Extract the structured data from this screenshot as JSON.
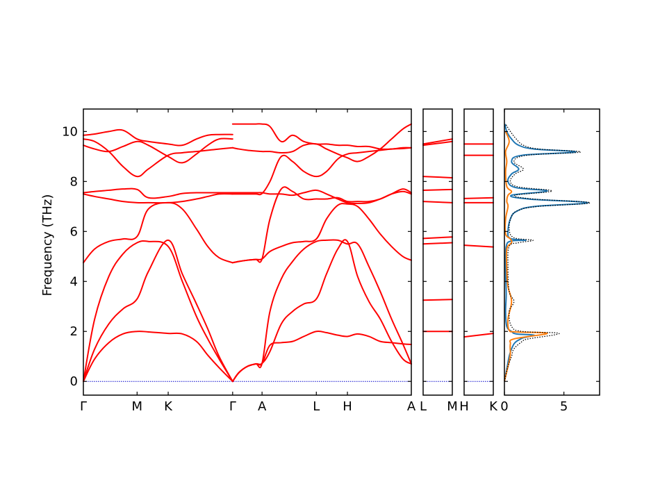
{
  "chart_data": {
    "type": "line",
    "ylabel": "Frequency (THz)",
    "ylim": [
      -0.55,
      10.9
    ],
    "yticks": [
      0,
      2,
      4,
      6,
      8,
      10
    ],
    "band_panels": [
      {
        "name": "main",
        "xlim": [
          0,
          5.8
        ],
        "labels": [
          {
            "x": 0,
            "text": "Γ"
          },
          {
            "x": 0.95,
            "text": "M"
          },
          {
            "x": 1.5,
            "text": "K"
          },
          {
            "x": 2.64,
            "text": "Γ"
          },
          {
            "x": 3.16,
            "text": "A"
          },
          {
            "x": 4.12,
            "text": "L"
          },
          {
            "x": 4.67,
            "text": "H"
          },
          {
            "x": 5.8,
            "text": "A"
          }
        ],
        "ticks": [
          0.95,
          1.5,
          2.64,
          3.16,
          4.12,
          4.67
        ],
        "segments": [
          {
            "x": [
              0,
              0.2,
              0.45,
              0.7,
              0.95,
              1.15,
              1.5,
              1.75,
              2.0,
              2.2,
              2.4,
              2.64
            ],
            "bands": [
              [
                0,
                0.9,
                1.55,
                1.9,
                2.0,
                1.98,
                1.92,
                1.9,
                1.6,
                1.05,
                0.55,
                0
              ],
              [
                0,
                1.3,
                2.3,
                2.9,
                3.3,
                4.4,
                5.65,
                4.3,
                3.1,
                2.1,
                1.0,
                0
              ],
              [
                0,
                2.5,
                4.2,
                5.1,
                5.55,
                5.6,
                5.4,
                4.0,
                2.6,
                1.7,
                0.9,
                0
              ],
              [
                4.75,
                5.3,
                5.6,
                5.7,
                5.8,
                6.9,
                7.15,
                6.9,
                6.1,
                5.4,
                4.95,
                4.75
              ],
              [
                7.55,
                7.6,
                7.65,
                7.7,
                7.68,
                7.35,
                7.4,
                7.52,
                7.55,
                7.55,
                7.55,
                7.55
              ],
              [
                7.5,
                7.4,
                7.3,
                7.2,
                7.15,
                7.15,
                7.15,
                7.2,
                7.3,
                7.4,
                7.5,
                7.5
              ],
              [
                9.7,
                9.6,
                9.2,
                8.6,
                8.2,
                8.5,
                9.05,
                9.15,
                9.2,
                9.25,
                9.3,
                9.35
              ],
              [
                9.45,
                9.3,
                9.2,
                9.4,
                9.6,
                9.45,
                9.0,
                8.75,
                9.1,
                9.45,
                9.7,
                9.7
              ],
              [
                9.85,
                9.9,
                10.0,
                10.05,
                9.7,
                9.6,
                9.5,
                9.45,
                9.7,
                9.85,
                9.88,
                9.88
              ]
            ]
          },
          {
            "x": [
              2.64,
              2.75,
              2.9,
              3.05,
              3.16,
              3.3,
              3.5,
              3.7,
              3.9,
              4.12,
              4.3,
              4.5,
              4.67,
              4.85,
              5.05,
              5.25,
              5.45,
              5.65,
              5.8
            ],
            "bands": [
              [
                0,
                0.35,
                0.6,
                0.7,
                0.72,
                1.45,
                1.55,
                1.6,
                1.8,
                2.0,
                1.95,
                1.85,
                1.8,
                1.9,
                1.8,
                1.6,
                1.55,
                1.5,
                1.48
              ],
              [
                0,
                0.35,
                0.6,
                0.7,
                0.72,
                1.2,
                2.3,
                2.8,
                3.1,
                3.3,
                4.3,
                5.3,
                5.6,
                4.2,
                3.2,
                2.5,
                1.6,
                0.9,
                0.7
              ],
              [
                0,
                0.35,
                0.6,
                0.7,
                0.72,
                2.8,
                4.1,
                4.8,
                5.3,
                5.6,
                5.65,
                5.65,
                5.5,
                5.5,
                4.6,
                3.6,
                2.5,
                1.5,
                0.7
              ],
              [
                4.75,
                4.8,
                4.85,
                4.88,
                4.9,
                5.2,
                5.4,
                5.55,
                5.6,
                5.7,
                6.5,
                7.05,
                7.1,
                7.0,
                6.5,
                5.9,
                5.4,
                5.0,
                4.85
              ],
              [
                4.75,
                4.8,
                4.85,
                4.88,
                4.9,
                6.5,
                7.7,
                7.6,
                7.3,
                7.3,
                7.3,
                7.35,
                7.2,
                7.2,
                7.2,
                7.3,
                7.5,
                7.6,
                7.5
              ],
              [
                7.55,
                7.55,
                7.55,
                7.55,
                7.55,
                7.5,
                7.5,
                7.45,
                7.55,
                7.65,
                7.5,
                7.3,
                7.15,
                7.12,
                7.15,
                7.3,
                7.5,
                7.7,
                7.55
              ],
              [
                7.5,
                7.5,
                7.5,
                7.5,
                7.52,
                8.0,
                9.0,
                8.8,
                8.4,
                8.2,
                8.4,
                8.9,
                9.1,
                9.15,
                9.2,
                9.25,
                9.3,
                9.32,
                9.35
              ],
              [
                9.35,
                9.3,
                9.25,
                9.22,
                9.2,
                9.2,
                9.15,
                9.2,
                9.45,
                9.5,
                9.3,
                9.1,
                8.95,
                8.8,
                9.0,
                9.3,
                9.7,
                10.1,
                10.3
              ],
              [
                10.3,
                10.3,
                10.3,
                10.3,
                10.3,
                10.2,
                9.6,
                9.85,
                9.6,
                9.5,
                9.5,
                9.45,
                9.45,
                9.4,
                9.4,
                9.3,
                9.3,
                9.35,
                9.35
              ]
            ]
          }
        ]
      },
      {
        "name": "L-M",
        "xlim": [
          0,
          1
        ],
        "labels": [
          {
            "x": 0,
            "text": "L"
          },
          {
            "x": 1,
            "text": "M"
          }
        ],
        "segments": [
          {
            "x": [
              0,
              1
            ],
            "bands": [
              [
                2.0,
                2.0
              ],
              [
                3.25,
                3.28
              ],
              [
                5.5,
                5.55
              ],
              [
                5.72,
                5.78
              ],
              [
                7.2,
                7.15
              ],
              [
                7.65,
                7.68
              ],
              [
                8.2,
                8.15
              ],
              [
                9.45,
                9.6
              ],
              [
                9.5,
                9.7
              ]
            ]
          }
        ]
      },
      {
        "name": "H-K",
        "xlim": [
          0,
          1
        ],
        "labels": [
          {
            "x": 0,
            "text": "H"
          },
          {
            "x": 1,
            "text": "K"
          }
        ],
        "segments": [
          {
            "x": [
              0,
              1
            ],
            "bands": [
              [
                1.78,
                1.92
              ],
              [
                5.45,
                5.38
              ],
              [
                7.15,
                7.15
              ],
              [
                7.32,
                7.35
              ],
              [
                9.05,
                9.05
              ],
              [
                9.5,
                9.5
              ]
            ]
          }
        ]
      }
    ],
    "dos_panel": {
      "xlim": [
        0,
        8
      ],
      "xticks": [
        0,
        5
      ],
      "series": [
        {
          "name": "",
          "color": "#1f77b4",
          "style": "solid",
          "points": [
            [
              0,
              0
            ],
            [
              0.2,
              0.5
            ],
            [
              0.4,
              1.0
            ],
            [
              0.6,
              1.3
            ],
            [
              0.8,
              1.5
            ],
            [
              1.0,
              1.6
            ],
            [
              1.3,
              1.68
            ],
            [
              1.6,
              1.75
            ],
            [
              2.5,
              1.85
            ],
            [
              1.0,
              1.9
            ],
            [
              0.6,
              2.0
            ],
            [
              0.2,
              2.2
            ],
            [
              0.1,
              2.8
            ],
            [
              0.15,
              3.5
            ],
            [
              0.1,
              4.5
            ],
            [
              0.15,
              5.4
            ],
            [
              0.6,
              5.62
            ],
            [
              1.8,
              5.65
            ],
            [
              0.5,
              5.72
            ],
            [
              0.3,
              6.0
            ],
            [
              0.5,
              6.5
            ],
            [
              1.0,
              6.8
            ],
            [
              2.5,
              7.0
            ],
            [
              7.0,
              7.15
            ],
            [
              2.0,
              7.3
            ],
            [
              0.6,
              7.45
            ],
            [
              3.6,
              7.62
            ],
            [
              1.0,
              7.75
            ],
            [
              0.3,
              8.0
            ],
            [
              0.6,
              8.3
            ],
            [
              1.2,
              8.5
            ],
            [
              0.6,
              8.8
            ],
            [
              1.5,
              9.05
            ],
            [
              6.0,
              9.18
            ],
            [
              2.5,
              9.3
            ],
            [
              1.2,
              9.45
            ],
            [
              0.6,
              9.7
            ],
            [
              0.2,
              10.0
            ],
            [
              0.05,
              10.3
            ]
          ]
        },
        {
          "name": "",
          "color": "#ff7f0e",
          "style": "solid",
          "points": [
            [
              0,
              0
            ],
            [
              0.2,
              0.4
            ],
            [
              0.4,
              0.8
            ],
            [
              0.5,
              1.1
            ],
            [
              0.5,
              1.5
            ],
            [
              0.8,
              1.7
            ],
            [
              3.6,
              1.92
            ],
            [
              1.0,
              1.98
            ],
            [
              0.4,
              2.05
            ],
            [
              0.3,
              2.5
            ],
            [
              0.6,
              3.2
            ],
            [
              0.3,
              3.8
            ],
            [
              0.2,
              4.5
            ],
            [
              0.2,
              5.3
            ],
            [
              0.6,
              5.55
            ],
            [
              0.5,
              5.7
            ],
            [
              0.1,
              5.9
            ],
            [
              0.1,
              6.5
            ],
            [
              0.3,
              7.0
            ],
            [
              0.2,
              7.2
            ],
            [
              0.3,
              7.45
            ],
            [
              0.6,
              7.6
            ],
            [
              0.2,
              7.8
            ],
            [
              0.1,
              8.4
            ],
            [
              0.2,
              8.8
            ],
            [
              0.1,
              9.2
            ],
            [
              0.4,
              9.6
            ],
            [
              0.1,
              10.0
            ]
          ]
        },
        {
          "name": "",
          "color": "#000000",
          "style": "dotted",
          "points": [
            [
              0,
              0
            ],
            [
              0.3,
              0.6
            ],
            [
              0.6,
              1.0
            ],
            [
              0.8,
              1.3
            ],
            [
              1.5,
              1.6
            ],
            [
              2.0,
              1.7
            ],
            [
              4.6,
              1.92
            ],
            [
              1.5,
              2.0
            ],
            [
              0.6,
              2.2
            ],
            [
              0.4,
              2.8
            ],
            [
              0.8,
              3.2
            ],
            [
              0.4,
              3.6
            ],
            [
              0.3,
              4.6
            ],
            [
              0.4,
              5.4
            ],
            [
              1.2,
              5.55
            ],
            [
              2.4,
              5.65
            ],
            [
              0.8,
              5.75
            ],
            [
              0.4,
              6.1
            ],
            [
              0.6,
              6.6
            ],
            [
              1.2,
              6.85
            ],
            [
              2.8,
              7.0
            ],
            [
              7.2,
              7.15
            ],
            [
              2.4,
              7.3
            ],
            [
              0.9,
              7.45
            ],
            [
              4.0,
              7.62
            ],
            [
              1.2,
              7.78
            ],
            [
              0.5,
              8.0
            ],
            [
              0.9,
              8.3
            ],
            [
              1.6,
              8.5
            ],
            [
              0.8,
              8.8
            ],
            [
              1.9,
              9.05
            ],
            [
              6.4,
              9.18
            ],
            [
              2.9,
              9.3
            ],
            [
              1.6,
              9.45
            ],
            [
              1.0,
              9.7
            ],
            [
              0.5,
              10.0
            ],
            [
              0.1,
              10.3
            ]
          ]
        }
      ]
    }
  }
}
